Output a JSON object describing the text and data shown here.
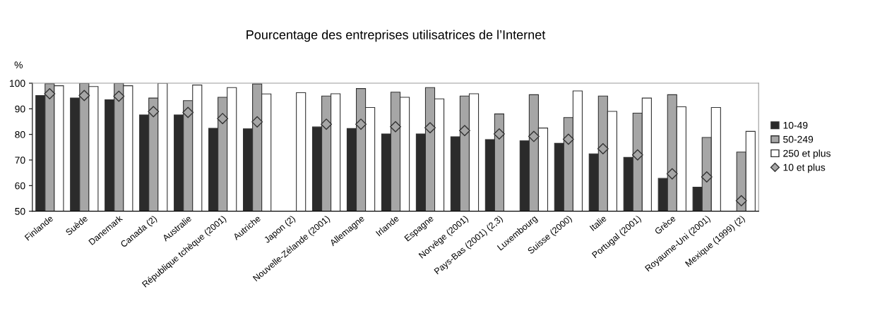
{
  "chart_data": {
    "type": "bar",
    "title": "Pourcentage des entreprises utilisatrices de l’Internet",
    "ylabel": "%",
    "categories": [
      "Finlande",
      "Suède",
      "Danemark",
      "Canada (2)",
      "Australie",
      "République tchèque (2001)",
      "Autriche",
      "Japon (2)",
      "Nouvelle-Zélande (2001)",
      "Allemagne",
      "Irlande",
      "Espagne",
      "Norvège (2001)",
      "Pays-Bas (2001) (2,3)",
      "Luxembourg",
      "Suisse (2000)",
      "Italie",
      "Portugal (2001)",
      "Grèce",
      "Royaume-Uni (2001)",
      "Mexique (1999) (2)"
    ],
    "series": [
      {
        "name": "10-49",
        "color": "#2b2b2b",
        "values": [
          95.2,
          94.2,
          93.5,
          87.6,
          87.6,
          82.4,
          82.2,
          null,
          82.9,
          82.3,
          80.2,
          80.2,
          79.1,
          78.0,
          77.5,
          76.5,
          72.4,
          71.0,
          62.8,
          59.4,
          null
        ]
      },
      {
        "name": "50-249",
        "color": "#a6a6a6",
        "values": [
          99.8,
          100,
          100,
          94.2,
          93.2,
          94.5,
          99.7,
          null,
          95.0,
          97.9,
          96.5,
          98.3,
          95.0,
          88.0,
          95.5,
          86.6,
          95.0,
          88.3,
          95.5,
          78.8,
          73.1
        ]
      },
      {
        "name": "250 et plus",
        "color": "#ffffff",
        "values": [
          99.0,
          98.7,
          99.0,
          100,
          99.3,
          98.3,
          95.8,
          96.3,
          95.9,
          90.5,
          94.5,
          93.9,
          95.9,
          null,
          82.5,
          97.0,
          89.0,
          94.2,
          90.8,
          90.5,
          81.2
        ]
      },
      {
        "name": "10 et plus",
        "type": "scatter",
        "color": "#a6a6a6",
        "values": [
          95.9,
          95.2,
          94.9,
          88.9,
          88.6,
          86.2,
          84.9,
          null,
          84.0,
          84.0,
          83.0,
          82.6,
          81.5,
          80.2,
          79.2,
          78.1,
          74.4,
          72.0,
          64.6,
          63.4,
          54.1
        ]
      }
    ],
    "ylim": [
      50,
      100
    ],
    "yticks": [
      50,
      60,
      70,
      80,
      90,
      100
    ],
    "grid": false,
    "legend": "right",
    "marker": "diamond"
  }
}
